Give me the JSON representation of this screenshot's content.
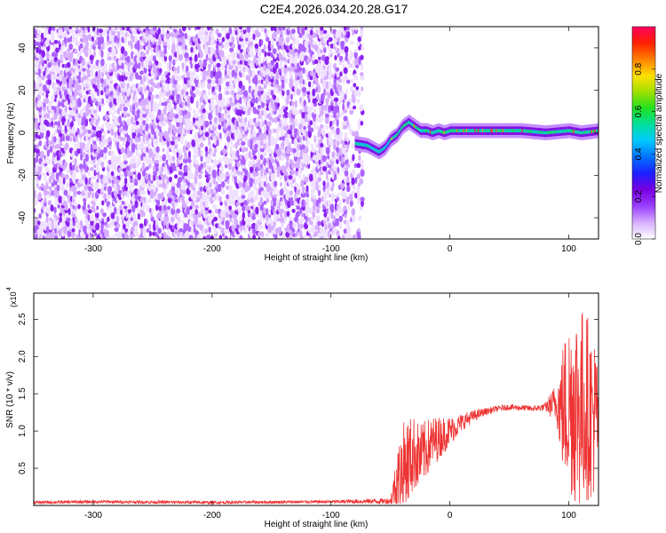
{
  "page_title": "C2E4.2026.034.20.28.G17",
  "chart_data": [
    {
      "type": "heatmap",
      "xlabel": "Height of straight line (km)",
      "ylabel": "Frequency (Hz)",
      "xlim": [
        -350,
        125
      ],
      "ylim": [
        -50,
        50
      ],
      "xticks": [
        -300,
        -200,
        -100,
        0,
        100
      ],
      "yticks": [
        -40,
        -20,
        0,
        20,
        40
      ],
      "noise_region_x": [
        -350,
        -75
      ],
      "signal_track": {
        "x": [
          -80,
          -70,
          -60,
          -55,
          -50,
          -45,
          -40,
          -35,
          -30,
          -25,
          -20,
          -15,
          -10,
          -5,
          0,
          10,
          20,
          40,
          60,
          80,
          100,
          110,
          125
        ],
        "y": [
          -5,
          -6,
          -9,
          -7,
          -3,
          -1,
          3,
          5,
          3,
          1,
          1,
          0,
          1,
          0,
          1,
          1,
          1,
          1,
          1,
          0,
          1,
          0,
          1
        ]
      },
      "colorbar": {
        "label": "Normalized spectral amplitude",
        "range": [
          0.0,
          1.0
        ],
        "ticks": [
          "0.0",
          "0.2",
          "0.4",
          "0.6",
          "0.8"
        ],
        "colors": [
          "#ffffff",
          "#d8b0ff",
          "#9a40ff",
          "#7a00e0",
          "#1e1eff",
          "#0070ff",
          "#00c8ff",
          "#00e0a0",
          "#20e020",
          "#a0e000",
          "#ffe000",
          "#ff8000",
          "#ff2000",
          "#ff0060"
        ]
      }
    },
    {
      "type": "line",
      "xlabel": "Height of straight line (km)",
      "ylabel": "SNR (10 * v/v)",
      "y_scale_label": "(x10",
      "y_scale_exp": "4",
      "xlim": [
        -350,
        125
      ],
      "ylim": [
        0,
        2.85
      ],
      "xticks": [
        -300,
        -200,
        -100,
        0,
        100
      ],
      "yticks": [
        "0.5",
        "1.0",
        "1.5",
        "2.0",
        "2.5"
      ],
      "series": [
        {
          "color": "#ee3333",
          "x": [
            -350,
            -300,
            -200,
            -100,
            -50,
            -45,
            -40,
            -35,
            -30,
            -25,
            -20,
            -15,
            -10,
            -5,
            0,
            5,
            10,
            20,
            30,
            40,
            50,
            60,
            70,
            80,
            90,
            95,
            100,
            105,
            110,
            115,
            120,
            125
          ],
          "y": [
            0.04,
            0.05,
            0.04,
            0.05,
            0.06,
            0.3,
            0.5,
            0.6,
            0.7,
            0.65,
            0.75,
            0.85,
            0.9,
            0.95,
            1.0,
            1.05,
            1.12,
            1.2,
            1.26,
            1.3,
            1.32,
            1.31,
            1.3,
            1.32,
            1.38,
            1.3,
            1.35,
            1.4,
            1.3,
            1.35,
            1.2,
            1.2
          ],
          "noise_amplitude": [
            0.02,
            0.02,
            0.02,
            0.02,
            0.04,
            0.4,
            0.6,
            0.6,
            0.5,
            0.45,
            0.4,
            0.35,
            0.3,
            0.25,
            0.2,
            0.15,
            0.12,
            0.08,
            0.05,
            0.04,
            0.04,
            0.04,
            0.04,
            0.05,
            0.3,
            0.9,
            1.2,
            1.4,
            1.4,
            1.3,
            1.1,
            1.0
          ]
        }
      ]
    }
  ]
}
